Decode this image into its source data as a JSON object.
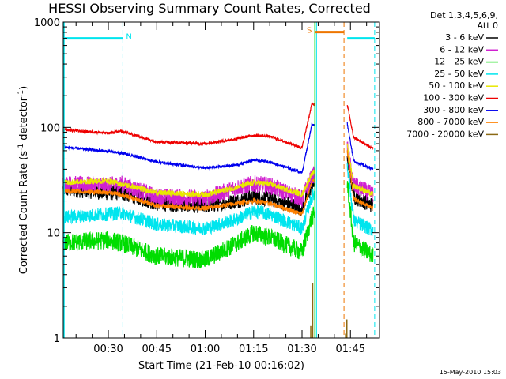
{
  "chart_data": {
    "type": "line",
    "title": "HESSI Observing Summary Count Rates, Corrected",
    "xlabel": "Start Time (21-Feb-10 00:16:02)",
    "ylabel_main": "Corrected Count Rate (s",
    "ylabel_sup1": "-1",
    "ylabel_mid": " detector",
    "ylabel_sup2": "-1",
    "ylabel_end": ")",
    "ylabel": "Corrected Count Rate (s^-1 detector^-1)",
    "y_scale": "log",
    "ylim": [
      1,
      1000
    ],
    "y_ticks": [
      1,
      10,
      100,
      1000
    ],
    "y_tick_labels": [
      "1",
      "10",
      "100",
      "1000"
    ],
    "x_ticks": [
      "00:30",
      "00:45",
      "01:00",
      "01:15",
      "01:30",
      "01:45"
    ],
    "x_tick_minutes": [
      30,
      45,
      60,
      75,
      90,
      105
    ],
    "xlim_minutes": [
      16.03,
      114
    ],
    "legend_header": [
      "Det 1,3,4,5,6,9,",
      "Att 0"
    ],
    "legend_placement": "right",
    "timestamp": "15-May-2010 15:03",
    "flags": [
      {
        "label": "N",
        "color": "#00e5ee",
        "start_min": 16.03,
        "end_min": 34.5
      },
      {
        "label": "S",
        "color": "#ee7600",
        "start_min": 94.0,
        "end_min": 103.0
      },
      {
        "label": "",
        "color": "#00e5ee",
        "start_min": 104.0,
        "end_min": 112.5
      }
    ],
    "flag_level": 700,
    "dashed_markers": [
      {
        "color": "#00e5ee",
        "x_min": 34.5
      },
      {
        "color": "#ee7600",
        "x_min": 103.0
      },
      {
        "color": "#00e5ee",
        "x_min": 112.5
      }
    ],
    "gap_minutes": [
      94.0,
      104.0
    ],
    "series": [
      {
        "name": "3 - 6 keV",
        "color": "#000000",
        "x": [
          16,
          30,
          34,
          45,
          60,
          70,
          75,
          80,
          90,
          93,
          104,
          106,
          112
        ],
        "y": [
          26,
          24,
          24,
          19,
          18,
          20,
          22,
          21,
          17,
          28,
          55,
          22,
          18
        ]
      },
      {
        "name": "6 - 12 keV",
        "color": "#d020d0",
        "x": [
          16,
          30,
          34,
          45,
          60,
          70,
          75,
          80,
          90,
          93,
          104,
          106,
          112
        ],
        "y": [
          29,
          28,
          29,
          22,
          21,
          27,
          29,
          28,
          21,
          34,
          65,
          28,
          23
        ]
      },
      {
        "name": "12 - 25 keV",
        "color": "#00dd00",
        "x": [
          16,
          30,
          34,
          45,
          60,
          70,
          75,
          80,
          90,
          93,
          104,
          106,
          112
        ],
        "y": [
          8,
          8.5,
          8,
          6,
          5.5,
          8,
          10,
          9,
          6.5,
          14,
          30,
          8,
          6
        ]
      },
      {
        "name": "25 - 50 keV",
        "color": "#00e5ee",
        "x": [
          16,
          30,
          34,
          45,
          60,
          70,
          75,
          80,
          90,
          93,
          104,
          106,
          112
        ],
        "y": [
          14,
          15,
          15.5,
          12,
          11,
          13.5,
          16,
          15,
          11,
          22,
          45,
          13,
          10.5
        ]
      },
      {
        "name": "50 - 100 keV",
        "color": "#e8e800",
        "x": [
          16,
          30,
          34,
          45,
          60,
          70,
          75,
          80,
          90,
          93,
          104,
          106,
          112
        ],
        "y": [
          30,
          31,
          29,
          24,
          23,
          27,
          30,
          29,
          23,
          36,
          70,
          28,
          23
        ]
      },
      {
        "name": "100 - 300 keV",
        "color": "#ee0000",
        "x": [
          16,
          30,
          34,
          45,
          60,
          70,
          75,
          80,
          90,
          93,
          104,
          106,
          112
        ],
        "y": [
          95,
          88,
          92,
          73,
          70,
          78,
          84,
          82,
          64,
          165,
          165,
          80,
          63
        ]
      },
      {
        "name": "300 - 800 keV",
        "color": "#0000ee",
        "x": [
          16,
          30,
          34,
          45,
          60,
          70,
          75,
          80,
          90,
          93,
          104,
          106,
          112
        ],
        "y": [
          65,
          59,
          57,
          47,
          41,
          44,
          49,
          47,
          37,
          105,
          110,
          48,
          40
        ]
      },
      {
        "name": "800 - 7000 keV",
        "color": "#ff8000",
        "x": [
          16,
          30,
          34,
          45,
          60,
          70,
          75,
          80,
          90,
          93,
          104,
          106,
          112
        ],
        "y": [
          25,
          24,
          23,
          18,
          17,
          19,
          20,
          19,
          15,
          30,
          60,
          21,
          17
        ]
      },
      {
        "name": "7000 - 20000 keV",
        "color": "#8b6914",
        "x": [
          92.7,
          93.3,
          103.5,
          103.9
        ],
        "y": [
          1.3,
          3.3,
          1.1,
          1.5
        ]
      }
    ]
  }
}
